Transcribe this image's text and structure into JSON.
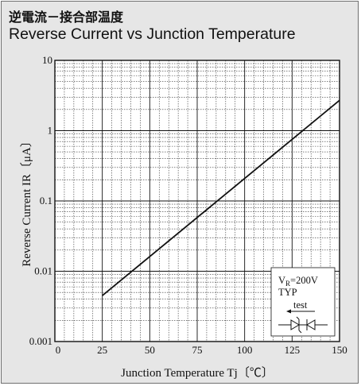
{
  "title_ja": "逆電流－接合部温度",
  "title_en": "Reverse Current vs Junction Temperature",
  "chart_data": {
    "type": "line",
    "xscale": "linear",
    "yscale": "log",
    "xlim": [
      0,
      150
    ],
    "ylim": [
      0.001,
      10
    ],
    "x_ticks": [
      "0",
      "25",
      "50",
      "75",
      "100",
      "125",
      "150"
    ],
    "y_ticks": [
      "0.001",
      "0.01",
      "0.1",
      "1",
      "10"
    ],
    "xlabel": "Junction Temperature Tj〔℃〕",
    "ylabel": "Reverse Current IR〔μA〕",
    "grid": true,
    "series": [
      {
        "x": [
          25,
          150
        ],
        "y": [
          0.0045,
          2.7
        ]
      }
    ],
    "annotations": {
      "vr_main": "V",
      "vr_sub": "R",
      "vr_value": "=200V",
      "typ": "TYP",
      "test": "test"
    }
  }
}
